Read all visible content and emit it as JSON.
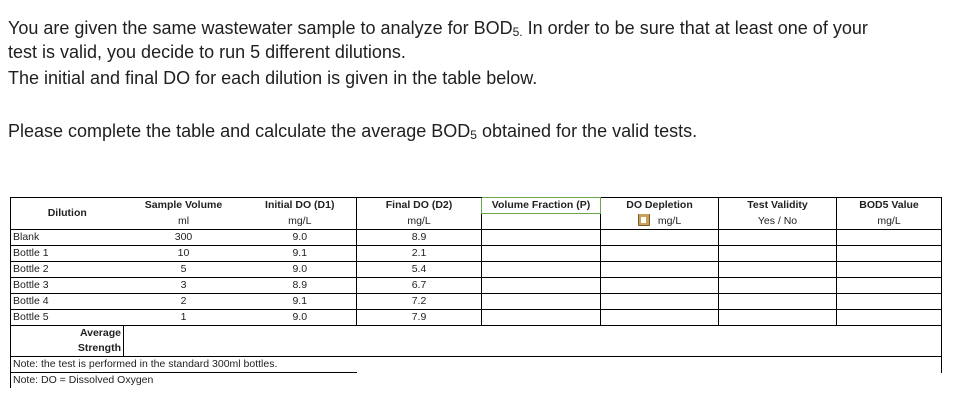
{
  "question": {
    "line1_pre": "You are given the same wastewater sample to analyze for BOD",
    "line1_sub": "5.",
    "line1_post": " In order to be sure that at least one of your",
    "line2": "test is valid, you decide to run 5 different dilutions.",
    "line3": "The initial and final DO for each dilution is given in the table below.",
    "line4_pre": "Please complete the table and calculate the average BOD",
    "line4_sub": "5",
    "line4_post": " obtained for the valid tests."
  },
  "table": {
    "headers": {
      "dilution": "Dilution",
      "sample_volume": "Sample Volume",
      "initial_do": "Initial DO (D1)",
      "final_do": "Final DO (D2)",
      "volume_fraction": "Volume Fraction  (P)",
      "do_depletion": "DO Depletion",
      "test_validity": "Test Validity",
      "bod5_value": "BOD5 Value"
    },
    "units": {
      "sample_volume": "ml",
      "initial_do": "mg/L",
      "final_do": "mg/L",
      "do_depletion": "mg/L",
      "test_validity": "Yes / No",
      "bod5_value": "mg/L"
    },
    "rows": [
      {
        "name": "Blank",
        "volume": "300",
        "d1": "9.0",
        "d2": "8.9"
      },
      {
        "name": "Bottle 1",
        "volume": "10",
        "d1": "9.1",
        "d2": "2.1"
      },
      {
        "name": "Bottle 2",
        "volume": "5",
        "d1": "9.0",
        "d2": "5.4"
      },
      {
        "name": "Bottle 3",
        "volume": "3",
        "d1": "8.9",
        "d2": "6.7"
      },
      {
        "name": "Bottle 4",
        "volume": "2",
        "d1": "9.1",
        "d2": "7.2"
      },
      {
        "name": "Bottle 5",
        "volume": "1",
        "d1": "9.0",
        "d2": "7.9"
      }
    ],
    "average_label": "Average",
    "strength_label": "Strength",
    "note1": "Note: the test is performed in the standard 300ml bottles.",
    "note2": "Note: DO = Dissolved Oxygen"
  }
}
